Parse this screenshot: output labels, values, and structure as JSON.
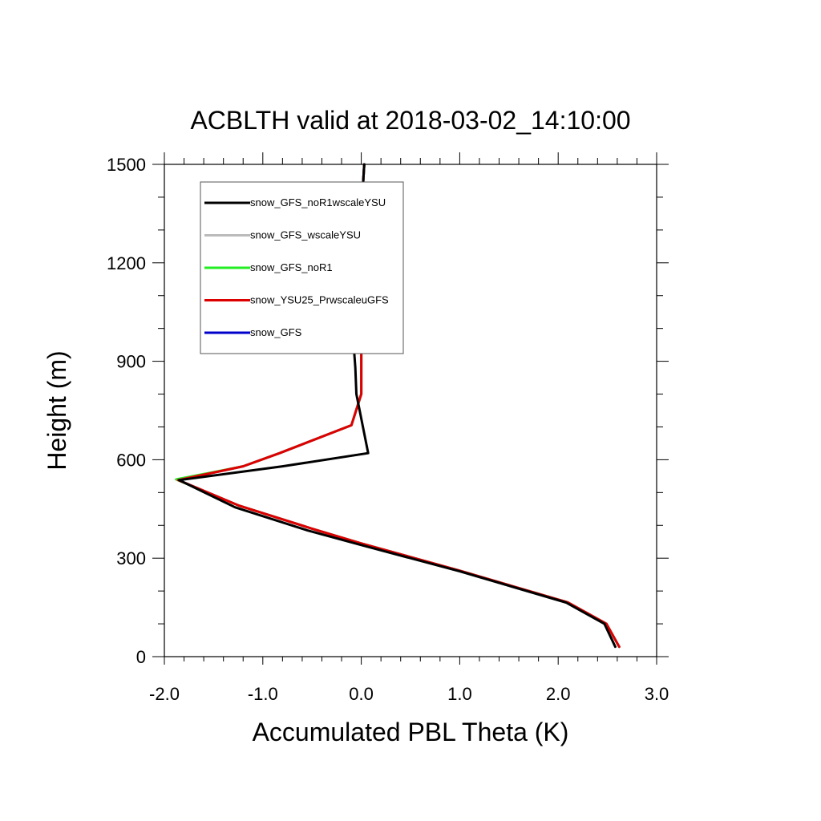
{
  "chart_data": {
    "type": "line",
    "title": "ACBLTH valid at 2018-03-02_14:10:00",
    "xlabel": "Accumulated PBL Theta (K)",
    "ylabel": "Height (m)",
    "xlim": [
      -2.0,
      3.0
    ],
    "ylim": [
      0,
      1500
    ],
    "x_ticks": [
      -2.0,
      -1.0,
      0.0,
      1.0,
      2.0,
      3.0
    ],
    "x_tick_labels": [
      "-2.0",
      "-1.0",
      "0.0",
      "1.0",
      "2.0",
      "3.0"
    ],
    "y_ticks": [
      0,
      300,
      600,
      900,
      1200,
      1500
    ],
    "y_tick_labels": [
      "0",
      "300",
      "600",
      "900",
      "1200",
      "1500"
    ],
    "grid": false,
    "legend_position": "top-left",
    "series": [
      {
        "name": "snow_GFS_noR1wscaleYSU",
        "color": "#000000",
        "x": [
          2.58,
          2.47,
          2.08,
          1.0,
          0.0,
          -0.55,
          -1.28,
          -1.85,
          -0.8,
          0.07,
          -0.05,
          -0.06,
          -0.08,
          -0.1,
          -0.05,
          -0.02,
          0.0,
          0.0,
          0.03
        ],
        "y": [
          30,
          100,
          165,
          260,
          340,
          385,
          455,
          538,
          580,
          620,
          800,
          880,
          960,
          985,
          1060,
          1120,
          1200,
          1350,
          1500
        ]
      },
      {
        "name": "snow_GFS_wscaleYSU",
        "color": "#bbbbbb",
        "x": [
          2.62,
          2.49,
          2.1,
          1.0,
          0.0,
          -0.5,
          -1.24,
          -1.86,
          -1.2,
          -0.83,
          -0.1,
          0.0,
          0.0,
          0.0,
          0.0,
          0.0,
          0.0,
          0.03
        ],
        "y": [
          30,
          100,
          165,
          262,
          345,
          390,
          460,
          538,
          580,
          620,
          705,
          800,
          880,
          960,
          1100,
          1200,
          1350,
          1500
        ]
      },
      {
        "name": "snow_GFS_noR1",
        "color": "#22ee22",
        "x": [
          2.62,
          2.49,
          2.1,
          1.0,
          0.0,
          -0.5,
          -1.24,
          -1.88,
          -1.2,
          -0.83,
          -0.1,
          0.0,
          0.0,
          0.0,
          0.0,
          0.0,
          0.0,
          0.03
        ],
        "y": [
          30,
          100,
          165,
          262,
          345,
          390,
          460,
          540,
          580,
          620,
          705,
          800,
          880,
          960,
          1100,
          1200,
          1350,
          1500
        ]
      },
      {
        "name": "snow_YSU25_PrwscaleuGFS",
        "color": "#dd0000",
        "x": [
          2.62,
          2.49,
          2.1,
          1.0,
          0.0,
          -0.5,
          -1.24,
          -1.86,
          -1.2,
          -0.83,
          -0.1,
          0.0,
          0.0,
          0.0,
          0.0,
          0.0,
          0.0,
          0.03
        ],
        "y": [
          30,
          100,
          165,
          262,
          345,
          390,
          460,
          538,
          580,
          620,
          705,
          800,
          880,
          960,
          1100,
          1200,
          1350,
          1500
        ]
      },
      {
        "name": "snow_GFS",
        "color": "#0000cc",
        "x": [
          2.62,
          2.49,
          2.1,
          1.0,
          0.0,
          -0.5,
          -1.24,
          -1.86,
          -1.2,
          -0.83,
          -0.1,
          0.0,
          0.0,
          0.0,
          0.0,
          0.0,
          0.0,
          0.03
        ],
        "y": [
          30,
          100,
          165,
          262,
          345,
          390,
          460,
          538,
          580,
          620,
          705,
          800,
          880,
          960,
          1100,
          1200,
          1350,
          1500
        ]
      }
    ]
  }
}
